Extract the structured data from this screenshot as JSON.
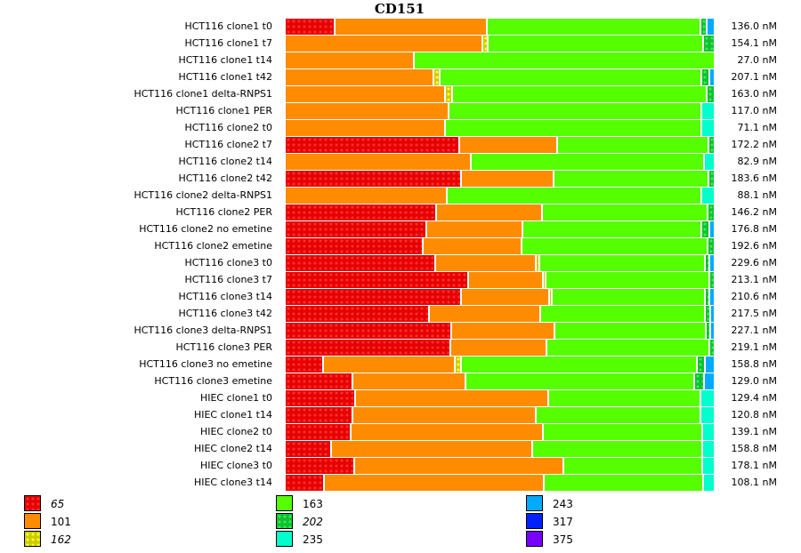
{
  "chart_data": {
    "type": "bar",
    "orientation": "horizontal",
    "stacked": true,
    "normalized": true,
    "title": "CD151",
    "xlabel": "",
    "ylabel": "",
    "value_unit": "fraction of total (%)",
    "legend_position": "bottom",
    "legend": [
      {
        "key": "65",
        "color": "#e60000",
        "patterned": true,
        "italic": true
      },
      {
        "key": "101",
        "color": "#ff8c00",
        "patterned": false,
        "italic": false
      },
      {
        "key": "162",
        "color": "#cccc00",
        "patterned": true,
        "italic": true
      },
      {
        "key": "163",
        "color": "#55ff00",
        "patterned": false,
        "italic": false
      },
      {
        "key": "202",
        "color": "#10c030",
        "patterned": true,
        "italic": true
      },
      {
        "key": "235",
        "color": "#00ffcc",
        "patterned": false,
        "italic": false
      },
      {
        "key": "243",
        "color": "#00aaff",
        "patterned": false,
        "italic": false
      },
      {
        "key": "317",
        "color": "#0022ff",
        "patterned": false,
        "italic": false
      },
      {
        "key": "375",
        "color": "#7700ff",
        "patterned": false,
        "italic": false
      }
    ],
    "rows": [
      {
        "label": "HCT116 clone1 t0",
        "total": "136.0 nM",
        "segments": {
          "65": 11.6,
          "101": 35.6,
          "163": 49.9,
          "202": 1.5,
          "243": 1.4
        }
      },
      {
        "label": "HCT116 clone1 t7",
        "total": "154.1 nM",
        "segments": {
          "101": 46.1,
          "162": 1.2,
          "163": 50.5,
          "202": 2.2
        }
      },
      {
        "label": "HCT116 clone1 t14",
        "total": "27.0 nM",
        "segments": {
          "101": 30.2,
          "163": 69.8
        }
      },
      {
        "label": "HCT116 clone1 t42",
        "total": "207.1 nM",
        "segments": {
          "101": 34.8,
          "162": 1.3,
          "163": 61.3,
          "202": 1.7,
          "243": 0.9
        }
      },
      {
        "label": "HCT116 clone1 delta-RNPS1",
        "total": "163.0 nM",
        "segments": {
          "101": 37.5,
          "162": 1.5,
          "163": 59.5,
          "202": 1.5
        }
      },
      {
        "label": "HCT116 clone1 PER",
        "total": "117.0 nM",
        "segments": {
          "101": 38.3,
          "163": 58.9,
          "235": 2.8
        }
      },
      {
        "label": "HCT116 clone2 t0",
        "total": "71.1 nM",
        "segments": {
          "101": 37.4,
          "163": 59.8,
          "235": 2.8
        }
      },
      {
        "label": "HCT116 clone2 t7",
        "total": "172.2 nM",
        "segments": {
          "65": 40.8,
          "101": 22.9,
          "163": 35.2,
          "202": 1.1
        }
      },
      {
        "label": "HCT116 clone2 t14",
        "total": "82.9 nM",
        "segments": {
          "101": 43.4,
          "163": 54.6,
          "235": 2.0
        }
      },
      {
        "label": "HCT116 clone2 t42",
        "total": "183.6 nM",
        "segments": {
          "65": 41.2,
          "101": 21.6,
          "163": 36.2,
          "202": 1.0
        }
      },
      {
        "label": "HCT116 clone2 delta-RNPS1",
        "total": "88.1 nM",
        "segments": {
          "101": 37.9,
          "163": 59.4,
          "235": 2.7
        }
      },
      {
        "label": "HCT116 clone2 PER",
        "total": "146.2 nM",
        "segments": {
          "65": 35.4,
          "101": 24.6,
          "163": 38.8,
          "202": 1.2
        }
      },
      {
        "label": "HCT116 clone2 no emetine",
        "total": "176.8 nM",
        "segments": {
          "65": 33.0,
          "101": 22.6,
          "163": 41.8,
          "202": 1.7,
          "243": 0.9
        }
      },
      {
        "label": "HCT116 clone2 emetine",
        "total": "192.6 nM",
        "segments": {
          "65": 32.3,
          "101": 23.1,
          "163": 43.4,
          "202": 1.2
        }
      },
      {
        "label": "HCT116 clone3 t0",
        "total": "229.6 nM",
        "segments": {
          "65": 35.1,
          "101": 23.5,
          "162": 0.8,
          "163": 38.7,
          "202": 1.0,
          "243": 0.9
        }
      },
      {
        "label": "HCT116 clone3 t7",
        "total": "213.1 nM",
        "segments": {
          "65": 42.9,
          "101": 17.3,
          "162": 0.8,
          "163": 38.2,
          "202": 0.8
        }
      },
      {
        "label": "HCT116 clone3 t14",
        "total": "210.6 nM",
        "segments": {
          "65": 41.1,
          "101": 20.7,
          "162": 0.5,
          "163": 35.9,
          "202": 0.9,
          "243": 0.9
        }
      },
      {
        "label": "HCT116 clone3 t42",
        "total": "217.5 nM",
        "segments": {
          "65": 33.7,
          "101": 26.0,
          "163": 38.5,
          "202": 1.2,
          "243": 0.6
        }
      },
      {
        "label": "HCT116 clone3 delta-RNPS1",
        "total": "227.1 nM",
        "segments": {
          "65": 38.9,
          "101": 24.1,
          "163": 35.4,
          "202": 1.0,
          "243": 0.6
        }
      },
      {
        "label": "HCT116 clone3 PER",
        "total": "219.1 nM",
        "segments": {
          "65": 38.6,
          "101": 22.5,
          "163": 38.0,
          "202": 0.9
        }
      },
      {
        "label": "HCT116 clone3 no emetine",
        "total": "158.8 nM",
        "segments": {
          "65": 8.9,
          "101": 30.9,
          "162": 1.4,
          "163": 55.0,
          "202": 1.9,
          "243": 1.9
        }
      },
      {
        "label": "HCT116 clone3 emetine",
        "total": "129.0 nM",
        "segments": {
          "65": 15.8,
          "101": 26.5,
          "163": 53.4,
          "202": 2.2,
          "243": 2.1
        }
      },
      {
        "label": "HIEC clone1 t0",
        "total": "129.4 nM",
        "segments": {
          "65": 16.5,
          "101": 45.1,
          "163": 35.5,
          "235": 2.9
        }
      },
      {
        "label": "HIEC clone1 t14",
        "total": "120.8 nM",
        "segments": {
          "65": 15.9,
          "101": 42.7,
          "163": 38.4,
          "235": 3.0
        }
      },
      {
        "label": "HIEC clone2 t0",
        "total": "139.1 nM",
        "segments": {
          "65": 15.4,
          "101": 44.8,
          "163": 37.4,
          "235": 2.4
        }
      },
      {
        "label": "HIEC clone2 t14",
        "total": "158.8 nM",
        "segments": {
          "65": 10.9,
          "101": 46.8,
          "163": 39.9,
          "235": 2.4
        }
      },
      {
        "label": "HIEC clone3 t0",
        "total": "178.1 nM",
        "segments": {
          "65": 16.3,
          "101": 48.8,
          "163": 32.5,
          "235": 2.4
        }
      },
      {
        "label": "HIEC clone3 t14",
        "total": "108.1 nM",
        "segments": {
          "65": 9.2,
          "101": 51.2,
          "163": 37.4,
          "235": 2.2
        }
      }
    ]
  }
}
